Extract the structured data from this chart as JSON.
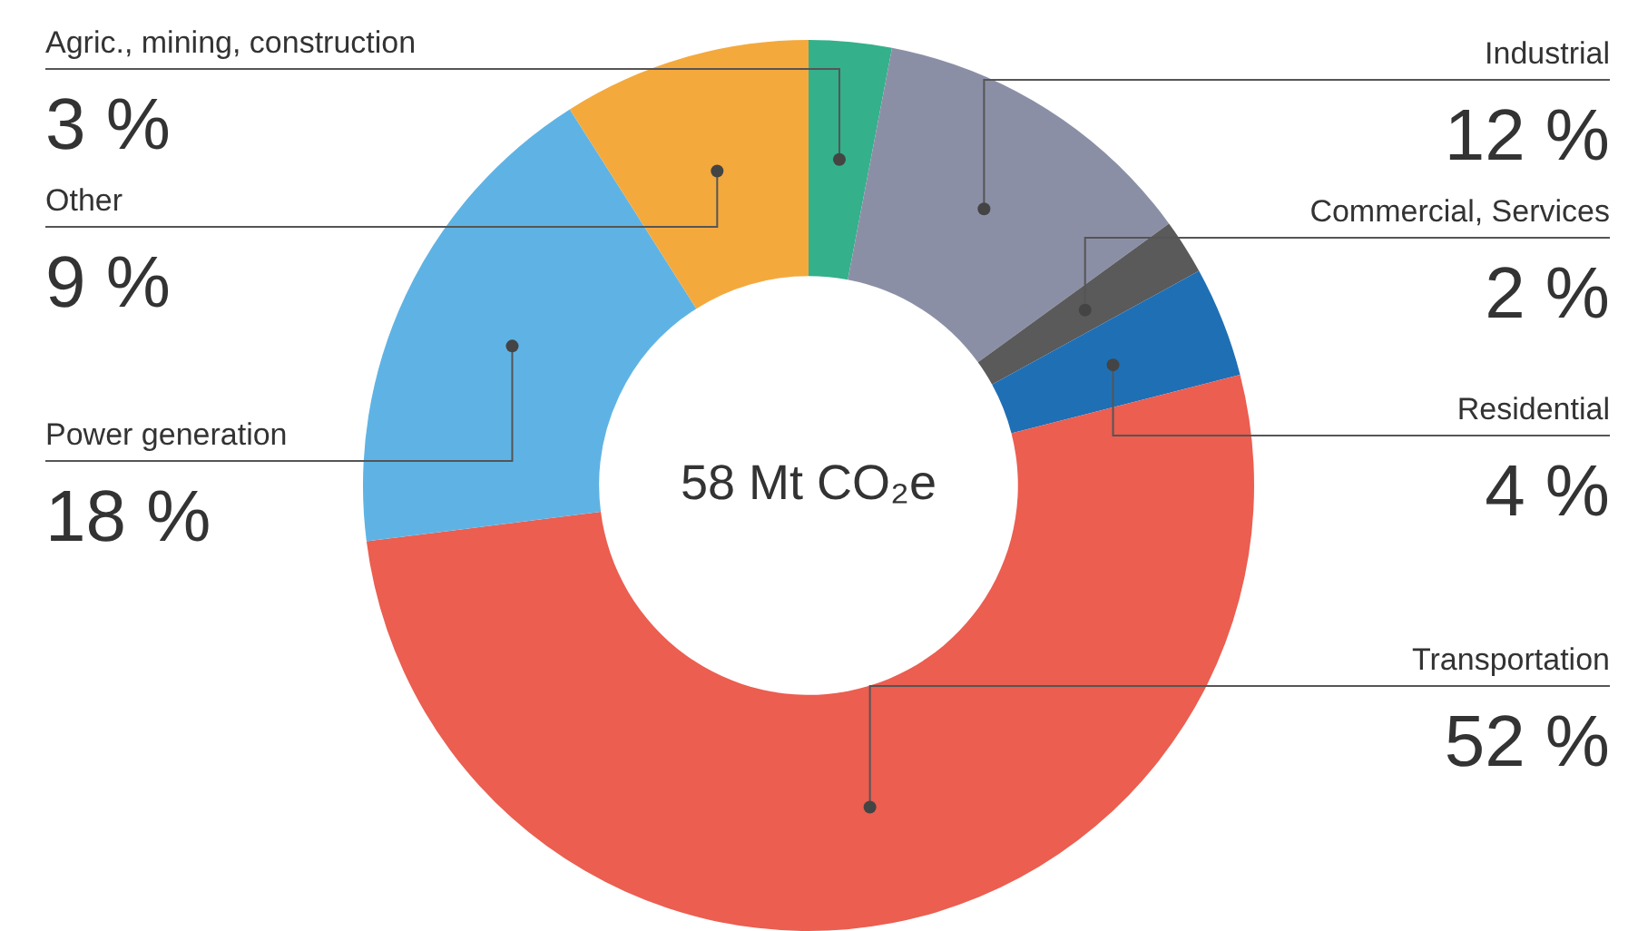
{
  "chart_data": {
    "type": "donut",
    "categories": [
      "Agric., mining, construction",
      "Industrial",
      "Commercial, Services",
      "Residential",
      "Transportation",
      "Power generation",
      "Other"
    ],
    "values": [
      3,
      12,
      2,
      4,
      52,
      18,
      9
    ],
    "colors": [
      "#34b08b",
      "#8b8fa6",
      "#5a5a5a",
      "#1f6fb5",
      "#eb5e50",
      "#5fb3e4",
      "#f4a93d"
    ],
    "value_labels": [
      "3 %",
      "12 %",
      "2 %",
      "4 %",
      "52 %",
      "18 %",
      "9 %"
    ],
    "annotations": [
      "58 Mt CO₂e"
    ],
    "legend": false
  }
}
